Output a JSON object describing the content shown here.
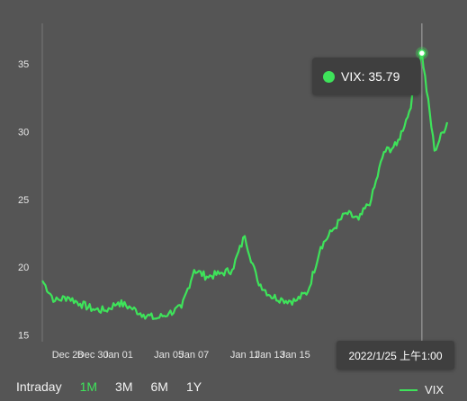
{
  "chart_data": {
    "type": "line",
    "title": "",
    "xlabel": "",
    "ylabel": "",
    "ylim": [
      14.5,
      38
    ],
    "y_ticks": [
      15,
      20,
      25,
      30,
      35
    ],
    "x_ticks": [
      "Dec 28",
      "Dec 30",
      "Jan 01",
      "Jan 05",
      "Jan 07",
      "Jan 11",
      "Jan 13",
      "Jan 15"
    ],
    "series": [
      {
        "name": "VIX",
        "color": "#3ee35a",
        "x": [
          "2021-12-26",
          "2021-12-27",
          "2021-12-28",
          "2021-12-29",
          "2021-12-30",
          "2021-12-31",
          "2022-01-01",
          "2022-01-02",
          "2022-01-03",
          "2022-01-04",
          "2022-01-05",
          "2022-01-06",
          "2022-01-07",
          "2022-01-08",
          "2022-01-09",
          "2022-01-10",
          "2022-01-11",
          "2022-01-12",
          "2022-01-13",
          "2022-01-14",
          "2022-01-15",
          "2022-01-16",
          "2022-01-17",
          "2022-01-18",
          "2022-01-19",
          "2022-01-20",
          "2022-01-21",
          "2022-01-22",
          "2022-01-23",
          "2022-01-24",
          "2022-01-25",
          "2022-01-26",
          "2022-01-27"
        ],
        "values": [
          19.0,
          17.5,
          17.8,
          17.3,
          16.9,
          16.8,
          17.4,
          17.0,
          16.5,
          16.2,
          16.6,
          17.0,
          19.8,
          19.3,
          19.5,
          19.8,
          22.3,
          19.0,
          17.9,
          17.6,
          17.5,
          18.2,
          21.5,
          22.8,
          24.0,
          23.5,
          25.0,
          28.5,
          29.0,
          31.5,
          35.8,
          28.6,
          30.7
        ]
      }
    ],
    "tooltip": {
      "label": "VIX: 35.79",
      "time": "2022/1/25 上午1:00"
    },
    "legend": "bottom-right",
    "ranges": [
      "Intraday",
      "1M",
      "3M",
      "6M",
      "1Y"
    ],
    "active_range": "1M"
  }
}
